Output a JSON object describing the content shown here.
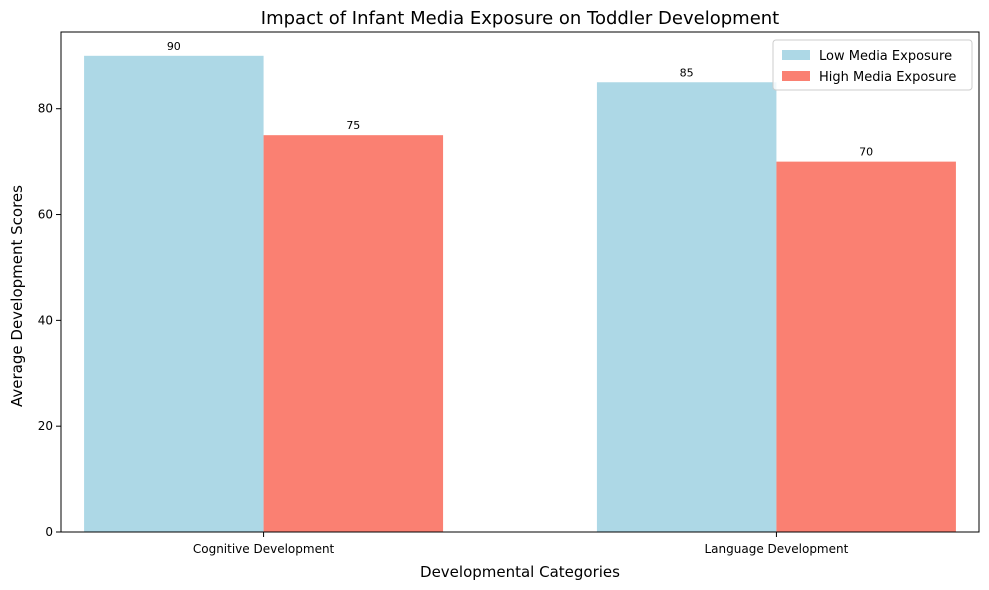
{
  "chart_data": {
    "type": "bar",
    "title": "Impact of Infant Media Exposure on Toddler Development",
    "xlabel": "Developmental Categories",
    "ylabel": "Average Development Scores",
    "categories": [
      "Cognitive Development",
      "Language Development"
    ],
    "series": [
      {
        "name": "Low Media Exposure",
        "values": [
          90,
          85
        ],
        "color": "#add8e6"
      },
      {
        "name": "High Media Exposure",
        "values": [
          75,
          70
        ],
        "color": "#fa8072"
      }
    ],
    "ylim": [
      0,
      94.5
    ],
    "yticks": [
      0,
      20,
      40,
      60,
      80
    ],
    "grid": false,
    "legend_position": "top-right",
    "show_value_labels": true
  }
}
